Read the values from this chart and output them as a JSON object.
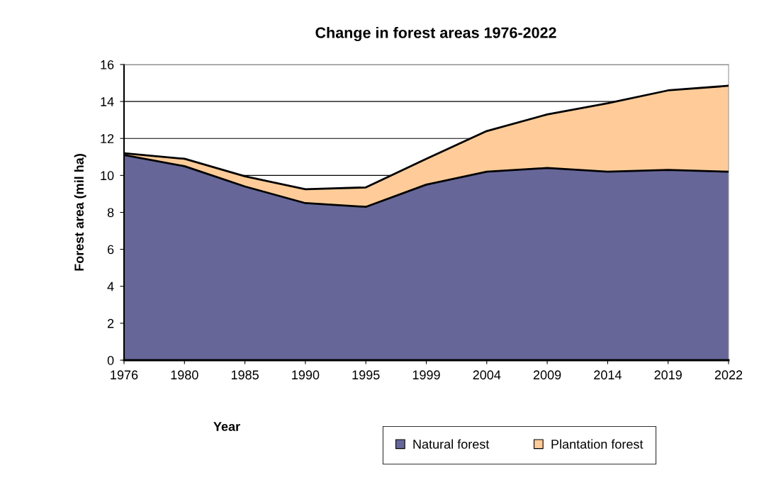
{
  "chart_data": {
    "type": "area",
    "title": "Change in forest areas 1976-2022",
    "xlabel": "Year",
    "ylabel": "Forest area (mil ha)",
    "categories": [
      "1976",
      "1980",
      "1985",
      "1990",
      "1995",
      "1999",
      "2004",
      "2009",
      "2014",
      "2019",
      "2022"
    ],
    "series": [
      {
        "name": "Natural forest",
        "color": "#666699",
        "values": [
          11.1,
          10.5,
          9.4,
          8.5,
          8.3,
          9.5,
          10.2,
          10.4,
          10.2,
          10.3,
          10.2
        ]
      },
      {
        "name": "Plantation forest",
        "color": "#ffcc99",
        "values": [
          0.1,
          0.4,
          0.55,
          0.75,
          1.05,
          1.4,
          2.2,
          2.9,
          3.7,
          4.3,
          4.65
        ]
      }
    ],
    "stacked": true,
    "ylim": [
      0,
      16
    ],
    "yticks": [
      0,
      2,
      4,
      6,
      8,
      10,
      12,
      14,
      16
    ],
    "grid": "y",
    "legend": "bottom"
  }
}
